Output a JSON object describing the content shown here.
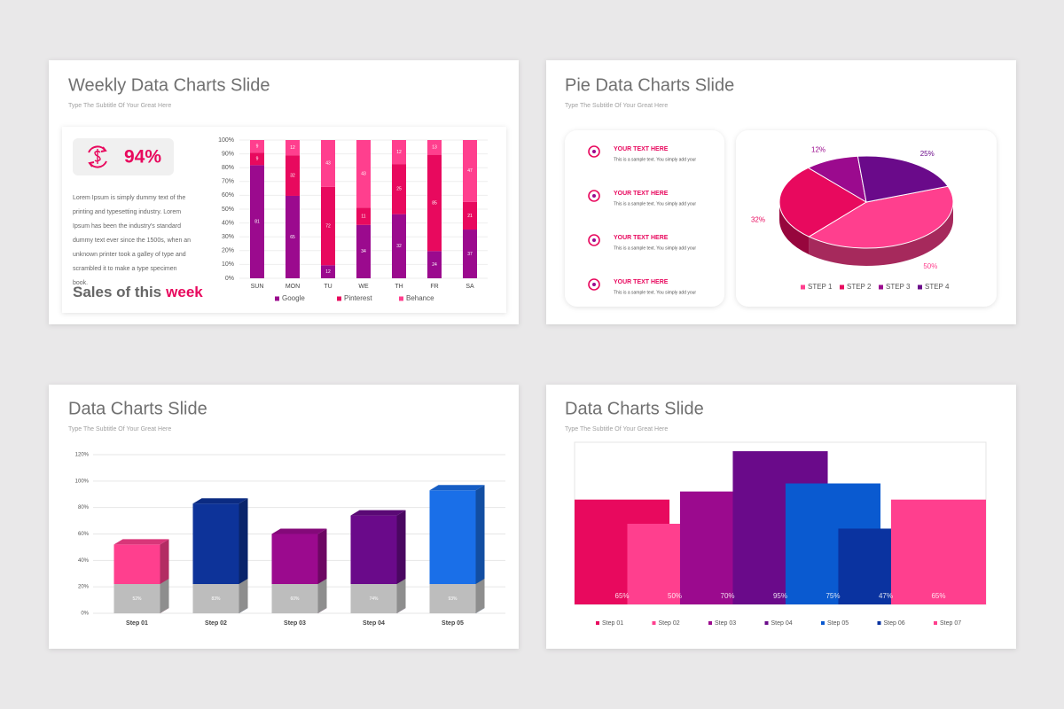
{
  "slides": [
    {
      "title": "Weekly Data Charts Slide",
      "subtitle": "Type The Subtitle Of Your Great Here",
      "stat": "94%",
      "body": "Lorem Ipsum is simply dummy text of the printing and typesetting industry. Lorem Ipsum has been the industry's standard dummy text ever since the 1500s, when an unknown printer took a galley of type and scrambled it to make a type specimen book.",
      "heading": "Sales of this",
      "heading_highlight": "week"
    },
    {
      "title": "Pie Data Charts Slide",
      "subtitle": "Type The Subtitle Of Your Great Here",
      "items": [
        {
          "title": "YOUR TEXT HERE",
          "text": "This is a sample text. You simply add your"
        },
        {
          "title": "YOUR TEXT HERE",
          "text": "This is a sample text. You simply add your"
        },
        {
          "title": "YOUR TEXT HERE",
          "text": "This is a sample text. You simply add your"
        },
        {
          "title": "YOUR TEXT HERE",
          "text": "This is a sample text. You simply add your"
        }
      ]
    },
    {
      "title": "Data Charts Slide",
      "subtitle": "Type The Subtitle Of Your Great Here"
    },
    {
      "title": "Data Charts Slide",
      "subtitle": "Type The Subtitle Of Your Great Here"
    }
  ],
  "chart_data": [
    {
      "type": "bar",
      "stacking": "percent",
      "categories": [
        "SUN",
        "MON",
        "TU",
        "WE",
        "TH",
        "FR",
        "SA"
      ],
      "series": [
        {
          "name": "Google",
          "color": "#9b0a8e",
          "values": [
            81,
            65,
            12,
            34,
            32,
            24,
            37
          ]
        },
        {
          "name": "Pinterest",
          "color": "#e8095e",
          "values": [
            9,
            32,
            72,
            11,
            25,
            85,
            21
          ]
        },
        {
          "name": "Behance",
          "color": "#ff3f8e",
          "values": [
            9,
            12,
            43,
            43,
            12,
            13,
            47
          ]
        }
      ],
      "ylim": [
        0,
        100
      ],
      "yticks": [
        {
          "value": 0,
          "label": "0%"
        },
        {
          "value": 10,
          "label": "10%"
        },
        {
          "value": 20,
          "label": "20%"
        },
        {
          "value": 30,
          "label": "30%"
        },
        {
          "value": 40,
          "label": "40%"
        },
        {
          "value": 50,
          "label": "50%"
        },
        {
          "value": 60,
          "label": "60%"
        },
        {
          "value": 70,
          "label": "70%"
        },
        {
          "value": 80,
          "label": "80%"
        },
        {
          "value": 90,
          "label": "90%"
        },
        {
          "value": 100,
          "label": "100%"
        }
      ],
      "grid": true
    },
    {
      "type": "pie",
      "categories": [
        "STEP 1",
        "STEP 2",
        "STEP 3",
        "STEP 4"
      ],
      "values": [
        50,
        32,
        12,
        25
      ],
      "value_labels": [
        "50%",
        "32%",
        "12%",
        "25%"
      ],
      "colors": [
        "#ff3f8e",
        "#e8095e",
        "#9b0a8e",
        "#6a0a8a"
      ]
    },
    {
      "type": "bar3d",
      "categories": [
        "Step 01",
        "Step 02",
        "Step 03",
        "Step 04",
        "Step 05"
      ],
      "values": [
        52,
        83,
        60,
        74,
        93
      ],
      "value_labels": [
        "52%",
        "83%",
        "60%",
        "74%",
        "93%"
      ],
      "colors": [
        "#ff3f8e",
        "#0d3399",
        "#9b0a8e",
        "#6a0a8a",
        "#1a6fe8"
      ],
      "ylim": [
        0,
        120
      ],
      "yticks": [
        {
          "value": 0,
          "label": "0%"
        },
        {
          "value": 20,
          "label": "20%"
        },
        {
          "value": 40,
          "label": "40%"
        },
        {
          "value": 60,
          "label": "60%"
        },
        {
          "value": 80,
          "label": "80%"
        },
        {
          "value": 100,
          "label": "100%"
        },
        {
          "value": 120,
          "label": "120%"
        }
      ],
      "grid": true
    },
    {
      "type": "column",
      "categories": [
        "Step 01",
        "Step 02",
        "Step 03",
        "Step 04",
        "Step 05",
        "Step 06",
        "Step 07"
      ],
      "values": [
        65,
        50,
        70,
        95,
        75,
        47,
        65
      ],
      "value_labels": [
        "65%",
        "50%",
        "70%",
        "95%",
        "75%",
        "47%",
        "65%"
      ],
      "colors": [
        "#e8095e",
        "#ff3f8e",
        "#9b0a8e",
        "#6a0a8a",
        "#0a5ad0",
        "#0a33a0",
        "#ff3f8e"
      ],
      "ylim": [
        0,
        100
      ]
    }
  ]
}
